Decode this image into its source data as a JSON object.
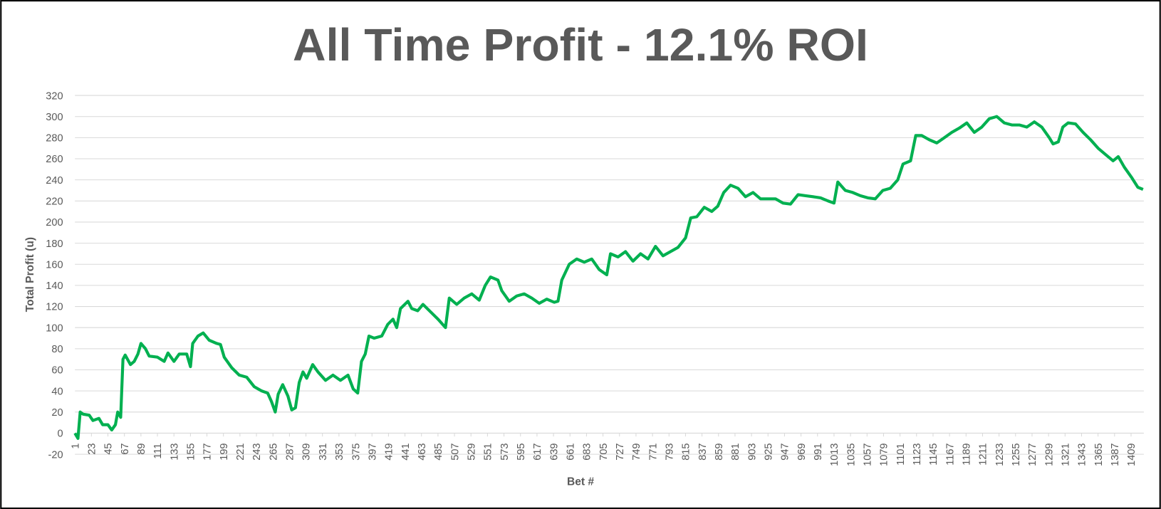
{
  "chart_data": {
    "type": "line",
    "title": "All Time Profit - 12.1% ROI",
    "xlabel": "Bet #",
    "ylabel": "Total Profit (u)",
    "color": "#00b050",
    "grid": true,
    "xlim": [
      1,
      1426
    ],
    "ylim": [
      -20,
      320
    ],
    "yticks": [
      -20,
      0,
      20,
      40,
      60,
      80,
      100,
      120,
      140,
      160,
      180,
      200,
      220,
      240,
      260,
      280,
      300,
      320
    ],
    "xticks": [
      1,
      23,
      45,
      67,
      89,
      111,
      133,
      155,
      177,
      199,
      221,
      243,
      265,
      287,
      309,
      331,
      353,
      375,
      397,
      419,
      441,
      463,
      485,
      507,
      529,
      551,
      573,
      595,
      617,
      639,
      661,
      683,
      705,
      727,
      749,
      771,
      793,
      815,
      837,
      859,
      881,
      903,
      925,
      947,
      969,
      991,
      1013,
      1035,
      1057,
      1079,
      1101,
      1123,
      1145,
      1167,
      1189,
      1211,
      1233,
      1255,
      1277,
      1299,
      1321,
      1343,
      1365,
      1387,
      1409
    ],
    "x": [
      1,
      5,
      8,
      12,
      20,
      25,
      33,
      38,
      45,
      50,
      55,
      58,
      62,
      65,
      68,
      75,
      80,
      85,
      89,
      95,
      100,
      111,
      120,
      125,
      133,
      140,
      150,
      155,
      158,
      165,
      172,
      180,
      190,
      195,
      200,
      210,
      220,
      230,
      240,
      250,
      258,
      263,
      268,
      272,
      278,
      285,
      290,
      295,
      300,
      305,
      310,
      318,
      325,
      335,
      345,
      355,
      365,
      372,
      378,
      383,
      388,
      393,
      400,
      410,
      418,
      425,
      430,
      435,
      445,
      450,
      458,
      465,
      475,
      485,
      495,
      500,
      510,
      520,
      530,
      540,
      548,
      555,
      565,
      570,
      580,
      590,
      600,
      610,
      620,
      630,
      640,
      645,
      650,
      660,
      670,
      680,
      690,
      700,
      710,
      715,
      725,
      735,
      745,
      755,
      765,
      775,
      785,
      795,
      805,
      815,
      822,
      830,
      840,
      850,
      858,
      866,
      875,
      885,
      895,
      905,
      915,
      925,
      935,
      945,
      955,
      965,
      975,
      985,
      995,
      1005,
      1013,
      1018,
      1028,
      1038,
      1048,
      1058,
      1068,
      1078,
      1088,
      1098,
      1105,
      1115,
      1122,
      1130,
      1140,
      1150,
      1160,
      1170,
      1180,
      1190,
      1200,
      1210,
      1220,
      1230,
      1240,
      1250,
      1260,
      1270,
      1280,
      1290,
      1300,
      1305,
      1312,
      1318,
      1325,
      1335,
      1345,
      1355,
      1365,
      1375,
      1385,
      1392,
      1400,
      1410,
      1418,
      1425
    ],
    "values": [
      0,
      -5,
      20,
      18,
      17,
      12,
      14,
      8,
      8,
      3,
      8,
      20,
      15,
      70,
      74,
      65,
      68,
      75,
      85,
      80,
      73,
      72,
      68,
      76,
      68,
      75,
      75,
      63,
      85,
      92,
      95,
      88,
      85,
      84,
      72,
      62,
      55,
      53,
      44,
      40,
      38,
      30,
      20,
      37,
      46,
      35,
      22,
      24,
      48,
      58,
      52,
      65,
      58,
      50,
      55,
      50,
      55,
      42,
      38,
      68,
      75,
      92,
      90,
      92,
      103,
      108,
      100,
      118,
      125,
      118,
      116,
      122,
      115,
      108,
      100,
      128,
      122,
      128,
      132,
      126,
      140,
      148,
      145,
      135,
      125,
      130,
      132,
      128,
      123,
      127,
      124,
      125,
      145,
      160,
      165,
      162,
      165,
      155,
      150,
      170,
      167,
      172,
      163,
      170,
      165,
      177,
      168,
      172,
      176,
      185,
      204,
      205,
      214,
      210,
      215,
      228,
      235,
      232,
      224,
      228,
      222,
      222,
      222,
      218,
      217,
      226,
      225,
      224,
      223,
      220,
      218,
      238,
      230,
      228,
      225,
      223,
      222,
      230,
      232,
      240,
      255,
      258,
      282,
      282,
      278,
      275,
      280,
      285,
      289,
      294,
      285,
      290,
      298,
      300,
      294,
      292,
      292,
      290,
      295,
      290,
      280,
      274,
      276,
      290,
      294,
      293,
      285,
      278,
      270,
      264,
      258,
      262,
      252,
      242,
      233,
      231
    ]
  }
}
